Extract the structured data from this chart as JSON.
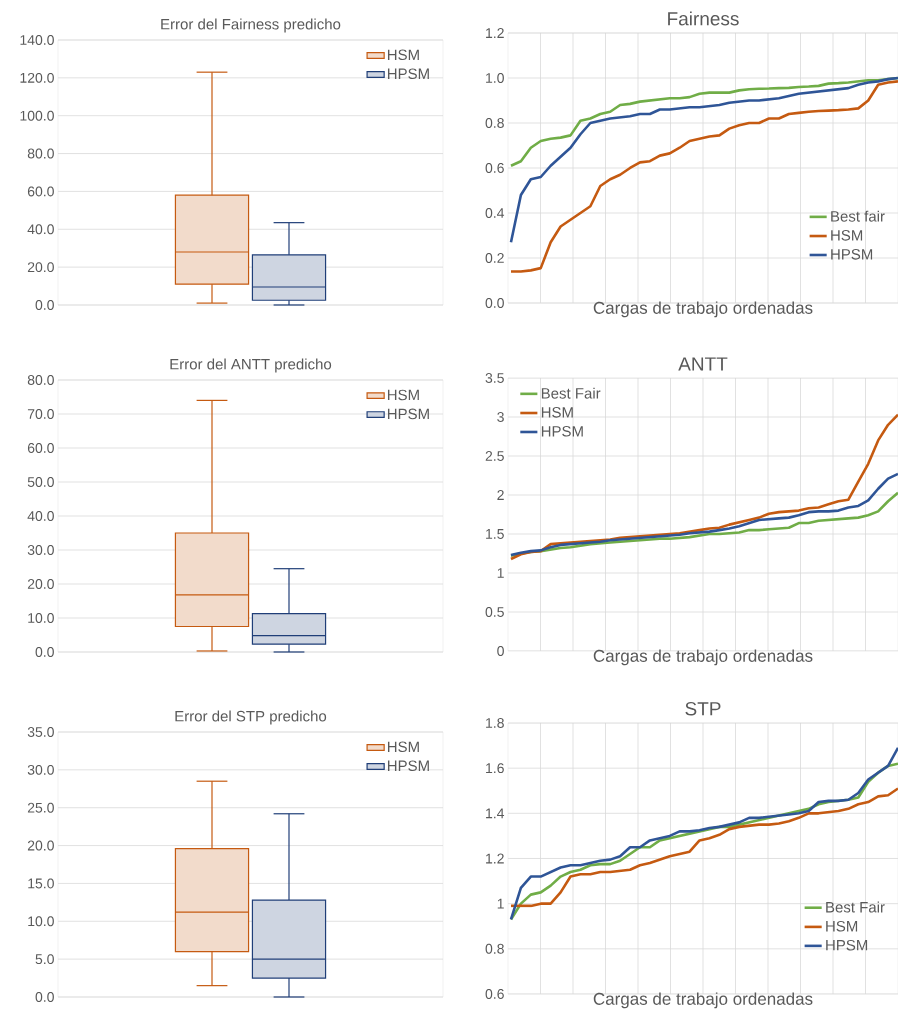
{
  "chart_data": [
    {
      "type": "box",
      "title": "Error del Fairness predicho",
      "categories": [
        null
      ],
      "ylim": [
        0,
        140
      ],
      "yticks": [
        {
          "value": 0,
          "label": "0.0"
        },
        {
          "value": 20,
          "label": "20.0"
        },
        {
          "value": 40,
          "label": "40.0"
        },
        {
          "value": 60,
          "label": "60.0"
        },
        {
          "value": 80,
          "label": "80.0"
        },
        {
          "value": 100,
          "label": "100.0"
        },
        {
          "value": 120,
          "label": "120.0"
        },
        {
          "value": 140,
          "label": "140.0"
        }
      ],
      "grid": "y",
      "legend": "top right",
      "series": [
        {
          "name": "HSM",
          "color": "#c55a11",
          "boxes": [
            {
              "low": 1,
              "q1": 11,
              "median": 28,
              "q3": 58,
              "high": 123
            }
          ]
        },
        {
          "name": "HPSM",
          "color": "#203f78",
          "boxes": [
            {
              "low": 0,
              "q1": 2.5,
              "median": 9.5,
              "q3": 26.5,
              "high": 43.5
            }
          ]
        }
      ]
    },
    {
      "type": "line",
      "title": "Fairness",
      "xlabel": "Cargas de trabajo ordenadas",
      "categories": [
        null,
        null,
        null,
        null,
        null,
        null,
        null,
        null,
        null,
        null,
        null,
        null,
        null,
        null,
        null,
        null,
        null,
        null,
        null,
        null,
        null,
        null,
        null,
        null,
        null,
        null,
        null,
        null,
        null,
        null,
        null,
        null,
        null,
        null,
        null,
        null,
        null,
        null,
        null,
        null
      ],
      "ylim": [
        0,
        1.2
      ],
      "yticks": [
        {
          "value": 0,
          "label": "0.0"
        },
        {
          "value": 0.2,
          "label": "0.2"
        },
        {
          "value": 0.4,
          "label": "0.4"
        },
        {
          "value": 0.6,
          "label": "0.6"
        },
        {
          "value": 0.8,
          "label": "0.8"
        },
        {
          "value": 1.0,
          "label": "1.0"
        },
        {
          "value": 1.2,
          "label": "1.2"
        }
      ],
      "grid": true,
      "legend": "bottom right",
      "series": [
        {
          "name": "Best fair",
          "color": "#70ad47",
          "values": [
            0.61,
            0.63,
            0.69,
            0.72,
            0.73,
            0.735,
            0.745,
            0.81,
            0.82,
            0.84,
            0.85,
            0.88,
            0.885,
            0.895,
            0.9,
            0.905,
            0.91,
            0.91,
            0.915,
            0.93,
            0.935,
            0.935,
            0.935,
            0.945,
            0.95,
            0.952,
            0.953,
            0.955,
            0.956,
            0.96,
            0.962,
            0.965,
            0.975,
            0.977,
            0.98,
            0.985,
            0.99,
            0.99,
            0.995,
            1.0
          ]
        },
        {
          "name": "HSM",
          "color": "#c55a11",
          "values": [
            0.14,
            0.14,
            0.145,
            0.155,
            0.27,
            0.34,
            0.37,
            0.4,
            0.43,
            0.52,
            0.55,
            0.57,
            0.6,
            0.625,
            0.63,
            0.655,
            0.665,
            0.69,
            0.72,
            0.73,
            0.74,
            0.745,
            0.775,
            0.79,
            0.8,
            0.8,
            0.82,
            0.82,
            0.84,
            0.845,
            0.85,
            0.853,
            0.855,
            0.857,
            0.86,
            0.865,
            0.9,
            0.97,
            0.98,
            0.985
          ]
        },
        {
          "name": "HPSM",
          "color": "#2f5597",
          "values": [
            0.27,
            0.48,
            0.55,
            0.56,
            0.61,
            0.65,
            0.69,
            0.75,
            0.8,
            0.81,
            0.82,
            0.825,
            0.83,
            0.84,
            0.84,
            0.86,
            0.86,
            0.865,
            0.87,
            0.87,
            0.875,
            0.88,
            0.89,
            0.895,
            0.9,
            0.9,
            0.905,
            0.91,
            0.92,
            0.93,
            0.935,
            0.94,
            0.945,
            0.95,
            0.955,
            0.97,
            0.98,
            0.985,
            0.995,
            1.0
          ]
        }
      ]
    },
    {
      "type": "box",
      "title": "Error del ANTT predicho",
      "categories": [
        null
      ],
      "ylim": [
        0,
        80
      ],
      "yticks": [
        {
          "value": 0,
          "label": "0.0"
        },
        {
          "value": 10,
          "label": "10.0"
        },
        {
          "value": 20,
          "label": "20.0"
        },
        {
          "value": 30,
          "label": "30.0"
        },
        {
          "value": 40,
          "label": "40.0"
        },
        {
          "value": 50,
          "label": "50.0"
        },
        {
          "value": 60,
          "label": "60.0"
        },
        {
          "value": 70,
          "label": "70.0"
        },
        {
          "value": 80,
          "label": "80.0"
        }
      ],
      "grid": "y",
      "legend": "top right",
      "series": [
        {
          "name": "HSM",
          "color": "#c55a11",
          "boxes": [
            {
              "low": 0.3,
              "q1": 7.5,
              "median": 16.8,
              "q3": 35,
              "high": 74
            }
          ]
        },
        {
          "name": "HPSM",
          "color": "#203f78",
          "boxes": [
            {
              "low": 0,
              "q1": 2.3,
              "median": 4.8,
              "q3": 11.3,
              "high": 24.5
            }
          ]
        }
      ]
    },
    {
      "type": "line",
      "title": "ANTT",
      "xlabel": "Cargas de trabajo ordenadas",
      "categories": [
        null,
        null,
        null,
        null,
        null,
        null,
        null,
        null,
        null,
        null,
        null,
        null,
        null,
        null,
        null,
        null,
        null,
        null,
        null,
        null,
        null,
        null,
        null,
        null,
        null,
        null,
        null,
        null,
        null,
        null,
        null,
        null,
        null,
        null,
        null,
        null,
        null,
        null,
        null,
        null
      ],
      "ylim": [
        0,
        3.5
      ],
      "yticks": [
        0,
        0.5,
        1,
        1.5,
        2,
        2.5,
        3,
        3.5
      ],
      "grid": true,
      "legend": "top left",
      "series": [
        {
          "name": "Best Fair",
          "color": "#70ad47",
          "values": [
            1.22,
            1.25,
            1.27,
            1.28,
            1.3,
            1.32,
            1.33,
            1.35,
            1.37,
            1.38,
            1.39,
            1.4,
            1.41,
            1.42,
            1.43,
            1.44,
            1.44,
            1.45,
            1.46,
            1.48,
            1.5,
            1.5,
            1.51,
            1.52,
            1.55,
            1.55,
            1.56,
            1.57,
            1.58,
            1.64,
            1.64,
            1.67,
            1.68,
            1.69,
            1.7,
            1.71,
            1.74,
            1.79,
            1.92,
            2.03
          ]
        },
        {
          "name": "HSM",
          "color": "#c55a11",
          "values": [
            1.18,
            1.24,
            1.27,
            1.28,
            1.37,
            1.38,
            1.39,
            1.4,
            1.41,
            1.42,
            1.43,
            1.45,
            1.46,
            1.47,
            1.48,
            1.49,
            1.5,
            1.51,
            1.53,
            1.55,
            1.57,
            1.58,
            1.62,
            1.65,
            1.68,
            1.71,
            1.76,
            1.78,
            1.79,
            1.8,
            1.83,
            1.84,
            1.88,
            1.92,
            1.94,
            2.17,
            2.4,
            2.7,
            2.9,
            3.03
          ]
        },
        {
          "name": "HPSM",
          "color": "#2f5597",
          "values": [
            1.23,
            1.26,
            1.28,
            1.29,
            1.33,
            1.36,
            1.37,
            1.38,
            1.39,
            1.4,
            1.42,
            1.43,
            1.44,
            1.45,
            1.46,
            1.47,
            1.48,
            1.49,
            1.51,
            1.52,
            1.53,
            1.55,
            1.57,
            1.6,
            1.64,
            1.68,
            1.69,
            1.7,
            1.71,
            1.74,
            1.78,
            1.79,
            1.79,
            1.8,
            1.84,
            1.86,
            1.93,
            2.08,
            2.21,
            2.27
          ]
        }
      ]
    },
    {
      "type": "box",
      "title": "Error del STP predicho",
      "categories": [
        null
      ],
      "ylim": [
        0,
        35
      ],
      "yticks": [
        {
          "value": 0,
          "label": "0.0"
        },
        {
          "value": 5,
          "label": "5.0"
        },
        {
          "value": 10,
          "label": "10.0"
        },
        {
          "value": 15,
          "label": "15.0"
        },
        {
          "value": 20,
          "label": "20.0"
        },
        {
          "value": 25,
          "label": "25.0"
        },
        {
          "value": 30,
          "label": "30.0"
        },
        {
          "value": 35,
          "label": "35.0"
        }
      ],
      "grid": "y",
      "legend": "top right",
      "series": [
        {
          "name": "HSM",
          "color": "#c55a11",
          "boxes": [
            {
              "low": 1.5,
              "q1": 6,
              "median": 11.2,
              "q3": 19.6,
              "high": 28.5
            }
          ]
        },
        {
          "name": "HPSM",
          "color": "#203f78",
          "boxes": [
            {
              "low": 0,
              "q1": 2.5,
              "median": 5,
              "q3": 12.8,
              "high": 24.2
            }
          ]
        }
      ]
    },
    {
      "type": "line",
      "title": "STP",
      "xlabel": "Cargas de trabajo ordenadas",
      "categories": [
        null,
        null,
        null,
        null,
        null,
        null,
        null,
        null,
        null,
        null,
        null,
        null,
        null,
        null,
        null,
        null,
        null,
        null,
        null,
        null,
        null,
        null,
        null,
        null,
        null,
        null,
        null,
        null,
        null,
        null,
        null,
        null,
        null,
        null,
        null,
        null,
        null,
        null,
        null,
        null
      ],
      "ylim": [
        0.6,
        1.8
      ],
      "yticks": [
        0.6,
        0.8,
        1,
        1.2,
        1.4,
        1.6,
        1.8
      ],
      "grid": true,
      "legend": "bottom right",
      "series": [
        {
          "name": "Best Fair",
          "color": "#70ad47",
          "values": [
            0.93,
            1.0,
            1.04,
            1.05,
            1.08,
            1.12,
            1.14,
            1.15,
            1.17,
            1.175,
            1.175,
            1.19,
            1.22,
            1.25,
            1.25,
            1.28,
            1.29,
            1.3,
            1.31,
            1.32,
            1.33,
            1.34,
            1.34,
            1.35,
            1.36,
            1.37,
            1.38,
            1.39,
            1.4,
            1.41,
            1.42,
            1.44,
            1.45,
            1.455,
            1.46,
            1.47,
            1.54,
            1.58,
            1.61,
            1.62
          ]
        },
        {
          "name": "HSM",
          "color": "#c55a11",
          "values": [
            0.99,
            0.99,
            0.99,
            1.0,
            1.0,
            1.05,
            1.12,
            1.13,
            1.13,
            1.14,
            1.14,
            1.145,
            1.15,
            1.17,
            1.18,
            1.195,
            1.21,
            1.22,
            1.23,
            1.28,
            1.29,
            1.305,
            1.33,
            1.34,
            1.345,
            1.35,
            1.35,
            1.355,
            1.365,
            1.38,
            1.4,
            1.4,
            1.405,
            1.41,
            1.42,
            1.44,
            1.45,
            1.475,
            1.48,
            1.51
          ]
        },
        {
          "name": "HPSM",
          "color": "#2f5597",
          "values": [
            0.93,
            1.07,
            1.12,
            1.12,
            1.14,
            1.16,
            1.17,
            1.17,
            1.18,
            1.19,
            1.195,
            1.21,
            1.25,
            1.25,
            1.28,
            1.29,
            1.3,
            1.32,
            1.32,
            1.325,
            1.335,
            1.34,
            1.35,
            1.36,
            1.38,
            1.38,
            1.385,
            1.39,
            1.395,
            1.4,
            1.41,
            1.45,
            1.455,
            1.455,
            1.46,
            1.49,
            1.55,
            1.58,
            1.61,
            1.69
          ]
        }
      ]
    }
  ]
}
